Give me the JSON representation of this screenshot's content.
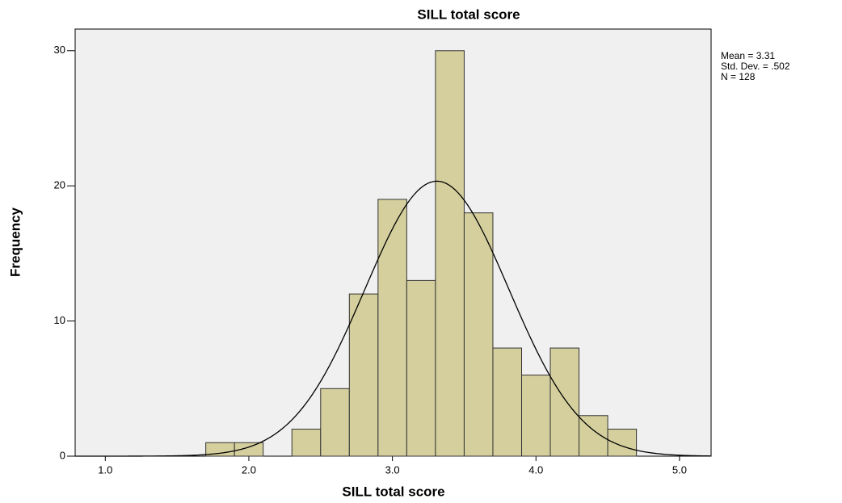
{
  "chart_data": {
    "type": "histogram",
    "title": "SILL total score",
    "x_label": "SILL total score",
    "y_label": "Frequency",
    "bins": [
      1.7,
      1.9,
      2.1,
      2.3,
      2.5,
      2.7,
      2.9,
      3.1,
      3.3,
      3.5,
      3.7,
      3.9,
      4.1,
      4.3,
      4.5,
      4.7
    ],
    "counts": [
      1,
      1,
      0,
      2,
      5,
      12,
      19,
      13,
      30,
      18,
      8,
      6,
      8,
      3,
      2
    ],
    "color": "#d4cf9d",
    "xlim": [
      0.79,
      5.22
    ],
    "xticks": [
      {
        "value": 1,
        "label": "1.0"
      },
      {
        "value": 2,
        "label": "2.0"
      },
      {
        "value": 3,
        "label": "3.0"
      },
      {
        "value": 4,
        "label": "4.0"
      },
      {
        "value": 5,
        "label": "5.0"
      }
    ],
    "ylim": [
      0,
      31.6
    ],
    "yticks": [
      0,
      10,
      20,
      30
    ],
    "normal_curve": {
      "mean": 3.31,
      "std_dev": 0.502,
      "n": 128
    },
    "annotations": [
      "Mean = 3.31",
      "Std. Dev. = .502",
      "N = 128"
    ]
  }
}
